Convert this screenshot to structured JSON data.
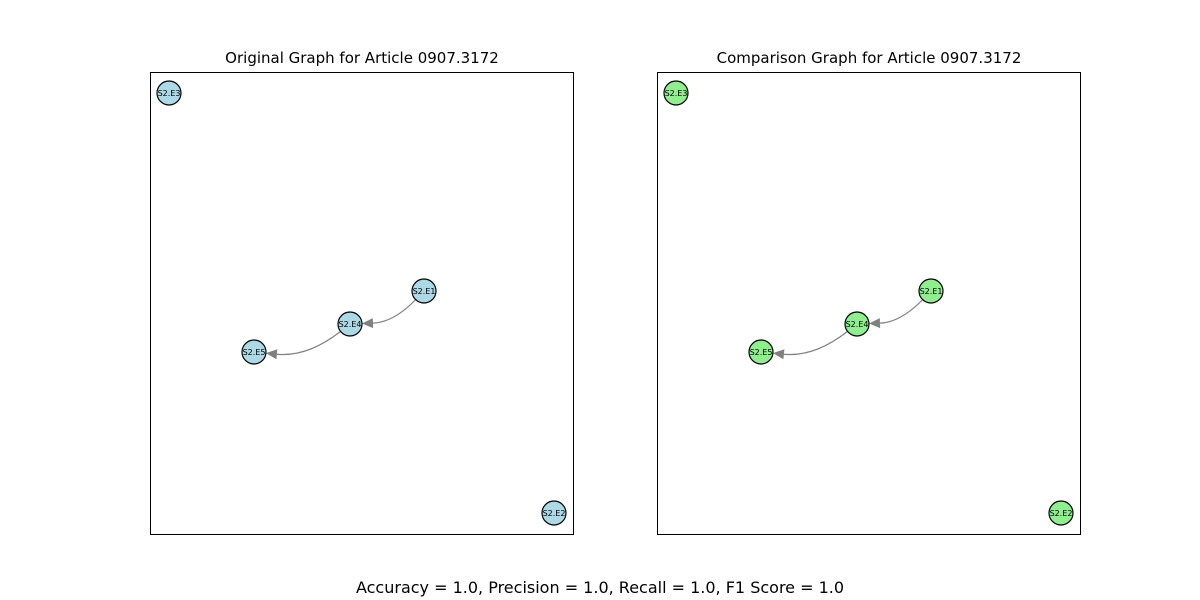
{
  "graphs": [
    {
      "title": "Original Graph for Article 0907.3172",
      "node_color": "#add8e6",
      "nodes": [
        {
          "id": "S2.E3",
          "label": "S2.E3"
        },
        {
          "id": "S2.E1",
          "label": "S2.E1"
        },
        {
          "id": "S2.E4",
          "label": "S2.E4"
        },
        {
          "id": "S2.E5",
          "label": "S2.E5"
        },
        {
          "id": "S2.E2",
          "label": "S2.E2"
        }
      ],
      "edges": [
        {
          "from": "S2.E1",
          "to": "S2.E4"
        },
        {
          "from": "S2.E4",
          "to": "S2.E5"
        }
      ]
    },
    {
      "title": "Comparison Graph for Article 0907.3172",
      "node_color": "#90ee90",
      "nodes": [
        {
          "id": "S2.E3",
          "label": "S2.E3"
        },
        {
          "id": "S2.E1",
          "label": "S2.E1"
        },
        {
          "id": "S2.E4",
          "label": "S2.E4"
        },
        {
          "id": "S2.E5",
          "label": "S2.E5"
        },
        {
          "id": "S2.E2",
          "label": "S2.E2"
        }
      ],
      "edges": [
        {
          "from": "S2.E1",
          "to": "S2.E4"
        },
        {
          "from": "S2.E4",
          "to": "S2.E5"
        }
      ]
    }
  ],
  "edge_color": "#808080",
  "caption": "Accuracy = 1.0, Precision = 1.0, Recall = 1.0, F1 Score = 1.0"
}
